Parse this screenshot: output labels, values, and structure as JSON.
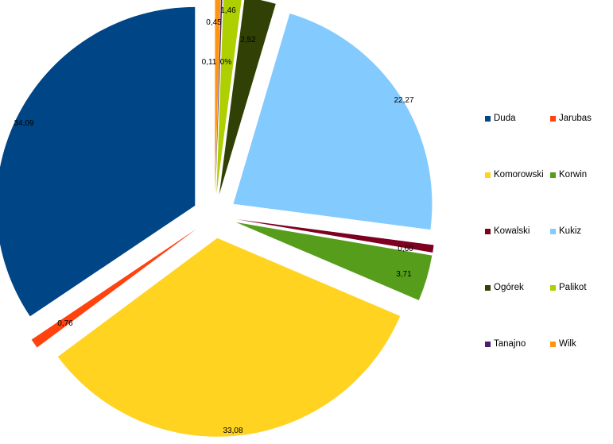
{
  "chart_data": {
    "type": "pie",
    "title": "",
    "slices": [
      {
        "name": "Duda",
        "value": 34.09,
        "label": "34,09",
        "color": "#004586"
      },
      {
        "name": "Jarubas",
        "value": 0.76,
        "label": "0,76",
        "color": "#ff420e"
      },
      {
        "name": "Komorowski",
        "value": 33.08,
        "label": "33,08",
        "color": "#ffd320"
      },
      {
        "name": "Korwin",
        "value": 3.71,
        "label": "3,71",
        "color": "#579d1c"
      },
      {
        "name": "Kowalski",
        "value": 0.6,
        "label": "0,60",
        "color": "#7e0021"
      },
      {
        "name": "Kukiz",
        "value": 22.27,
        "label": "22,27",
        "color": "#83caff"
      },
      {
        "name": "Ogórek",
        "value": 2.52,
        "label": "2,52",
        "color": "#314004"
      },
      {
        "name": "Palikot",
        "value": 1.46,
        "label": "1,46",
        "color": "#aecf00"
      },
      {
        "name": "Tanajno",
        "value": 0.11,
        "label": "0,11",
        "color": "#4b1f6f"
      },
      {
        "name": "Wilk",
        "value": 0.45,
        "label": "0,45",
        "color": "#ff950e"
      }
    ],
    "legend_position": "right",
    "zero_label": "0%"
  }
}
